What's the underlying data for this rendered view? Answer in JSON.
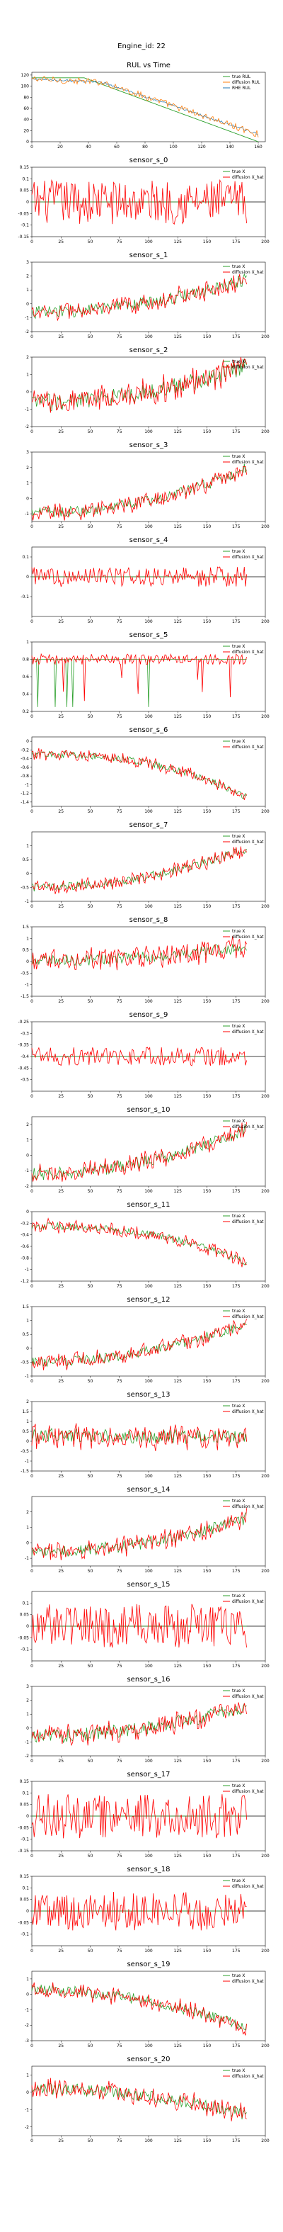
{
  "suptitle": "Engine_id: 22",
  "x_ticks_rul": [
    0,
    20,
    40,
    60,
    80,
    100,
    120,
    140,
    160
  ],
  "x_ticks_sensor": [
    0,
    25,
    50,
    75,
    100,
    125,
    150,
    175,
    200
  ],
  "colors": {
    "true": "#2ca02c",
    "pred": "#ff0000",
    "rul_true": "#2ca02c",
    "rul_pred": "#ff7f0e",
    "rul_rhat": "#1f77b4",
    "zero_line": "#000000"
  },
  "chart_data": [
    {
      "type": "line",
      "title": "RUL vs Time",
      "xlim": [
        0,
        165
      ],
      "ylim": [
        0,
        125
      ],
      "yticks": [
        0,
        20,
        40,
        60,
        80,
        100,
        120
      ],
      "legend": [
        "true RUL",
        "diffusion RUL",
        "RHE RUL"
      ],
      "legend_position": "top-right"
    },
    {
      "type": "line",
      "title": "sensor_s_0",
      "xlim": [
        0,
        200
      ],
      "ylim": [
        -0.15,
        0.15
      ],
      "yticks": [
        -0.15,
        -0.1,
        -0.05,
        0.0,
        0.05,
        0.1,
        0.15
      ],
      "legend": [
        "true X",
        "diffusion X_hat"
      ],
      "legend_position": "top-right"
    },
    {
      "type": "line",
      "title": "sensor_s_1",
      "xlim": [
        0,
        200
      ],
      "ylim": [
        -2,
        3
      ],
      "yticks": [
        -2,
        -1,
        0,
        1,
        2,
        3
      ],
      "legend": [
        "true X",
        "diffusion X_hat"
      ],
      "legend_position": "top-right"
    },
    {
      "type": "line",
      "title": "sensor_s_2",
      "xlim": [
        0,
        200
      ],
      "ylim": [
        -2,
        2
      ],
      "yticks": [
        -2,
        -1,
        0,
        1,
        2
      ],
      "legend": [
        "true X",
        "diffusion X_hat"
      ],
      "legend_position": "top-right"
    },
    {
      "type": "line",
      "title": "sensor_s_3",
      "xlim": [
        0,
        200
      ],
      "ylim": [
        -1.5,
        3
      ],
      "yticks": [
        -1,
        0,
        1,
        2,
        3
      ],
      "legend": [
        "true X",
        "diffusion X_hat"
      ],
      "legend_position": "top-right"
    },
    {
      "type": "line",
      "title": "sensor_s_4",
      "xlim": [
        0,
        200
      ],
      "ylim": [
        -0.2,
        0.15
      ],
      "yticks": [
        -0.1,
        0.0,
        0.1
      ],
      "legend": [
        "true X",
        "diffusion X_hat"
      ],
      "legend_position": "top-right"
    },
    {
      "type": "line",
      "title": "sensor_s_5",
      "xlim": [
        0,
        200
      ],
      "ylim": [
        0.2,
        1.0
      ],
      "yticks": [
        0.2,
        0.4,
        0.6,
        0.8,
        1.0
      ],
      "legend": [
        "true X",
        "diffusion X_hat"
      ],
      "legend_position": "top-right"
    },
    {
      "type": "line",
      "title": "sensor_s_6",
      "xlim": [
        0,
        200
      ],
      "ylim": [
        -1.5,
        0.1
      ],
      "yticks": [
        -1.4,
        -1.2,
        -1.0,
        -0.8,
        -0.6,
        -0.4,
        -0.2,
        0.0
      ],
      "legend": [
        "true X",
        "diffusion X_hat"
      ],
      "legend_position": "top-right"
    },
    {
      "type": "line",
      "title": "sensor_s_7",
      "xlim": [
        0,
        200
      ],
      "ylim": [
        -1.0,
        1.5
      ],
      "yticks": [
        -1.0,
        -0.5,
        0.0,
        0.5,
        1.0
      ],
      "legend": [
        "true X",
        "diffusion X_hat"
      ],
      "legend_position": "top-right"
    },
    {
      "type": "line",
      "title": "sensor_s_8",
      "xlim": [
        0,
        200
      ],
      "ylim": [
        -1.5,
        1.5
      ],
      "yticks": [
        -1.5,
        -1.0,
        -0.5,
        0.0,
        0.5,
        1.0,
        1.5
      ],
      "legend": [
        "true X",
        "diffusion X_hat"
      ],
      "legend_position": "top-right"
    },
    {
      "type": "line",
      "title": "sensor_s_9",
      "xlim": [
        0,
        200
      ],
      "ylim": [
        -0.55,
        -0.25
      ],
      "yticks": [
        -0.5,
        -0.45,
        -0.4,
        -0.35,
        -0.3,
        -0.25
      ],
      "legend": [
        "true X",
        "diffusion X_hat"
      ],
      "legend_position": "top-right"
    },
    {
      "type": "line",
      "title": "sensor_s_10",
      "xlim": [
        0,
        200
      ],
      "ylim": [
        -2,
        2.5
      ],
      "yticks": [
        -2,
        -1,
        0,
        1,
        2
      ],
      "legend": [
        "true X",
        "diffusion X_hat"
      ],
      "legend_position": "top-right"
    },
    {
      "type": "line",
      "title": "sensor_s_11",
      "xlim": [
        0,
        200
      ],
      "ylim": [
        -1.2,
        0.0
      ],
      "yticks": [
        -1.2,
        -1.0,
        -0.8,
        -0.6,
        -0.4,
        -0.2,
        0.0
      ],
      "legend": [
        "true X",
        "diffusion X_hat"
      ],
      "legend_position": "top-right"
    },
    {
      "type": "line",
      "title": "sensor_s_12",
      "xlim": [
        0,
        200
      ],
      "ylim": [
        -1.0,
        1.5
      ],
      "yticks": [
        -1.0,
        -0.5,
        0.0,
        0.5,
        1.0,
        1.5
      ],
      "legend": [
        "true X",
        "diffusion X_hat"
      ],
      "legend_position": "top-right"
    },
    {
      "type": "line",
      "title": "sensor_s_13",
      "xlim": [
        0,
        200
      ],
      "ylim": [
        -1.5,
        2.0
      ],
      "yticks": [
        -1.5,
        -1.0,
        -0.5,
        0.0,
        0.5,
        1.0,
        1.5,
        2.0
      ],
      "legend": [
        "true X",
        "diffusion X_hat"
      ],
      "legend_position": "top-right"
    },
    {
      "type": "line",
      "title": "sensor_s_14",
      "xlim": [
        0,
        200
      ],
      "ylim": [
        -1.5,
        3
      ],
      "yticks": [
        -1,
        0,
        1,
        2
      ],
      "legend": [
        "true X",
        "diffusion X_hat"
      ],
      "legend_position": "top-right"
    },
    {
      "type": "line",
      "title": "sensor_s_15",
      "xlim": [
        0,
        200
      ],
      "ylim": [
        -0.15,
        0.15
      ],
      "yticks": [
        -0.1,
        -0.05,
        0.0,
        0.05,
        0.1
      ],
      "legend": [
        "true X",
        "diffusion X_hat"
      ],
      "legend_position": "top-right"
    },
    {
      "type": "line",
      "title": "sensor_s_16",
      "xlim": [
        0,
        200
      ],
      "ylim": [
        -2,
        3
      ],
      "yticks": [
        -2,
        -1,
        0,
        1,
        2,
        3
      ],
      "legend": [
        "true X",
        "diffusion X_hat"
      ],
      "legend_position": "top-right"
    },
    {
      "type": "line",
      "title": "sensor_s_17",
      "xlim": [
        0,
        200
      ],
      "ylim": [
        -0.15,
        0.15
      ],
      "yticks": [
        -0.15,
        -0.1,
        -0.05,
        0.0,
        0.05,
        0.1,
        0.15
      ],
      "legend": [
        "true X",
        "diffusion X_hat"
      ],
      "legend_position": "top-right"
    },
    {
      "type": "line",
      "title": "sensor_s_18",
      "xlim": [
        0,
        200
      ],
      "ylim": [
        -0.15,
        0.15
      ],
      "yticks": [
        -0.1,
        -0.05,
        0.0,
        0.05,
        0.1,
        0.15
      ],
      "legend": [
        "true X",
        "diffusion X_hat"
      ],
      "legend_position": "top-right"
    },
    {
      "type": "line",
      "title": "sensor_s_19",
      "xlim": [
        0,
        200
      ],
      "ylim": [
        -3,
        1.5
      ],
      "yticks": [
        -3,
        -2,
        -1,
        0,
        1
      ],
      "legend": [
        "true X",
        "diffusion X_hat"
      ],
      "legend_position": "top-right"
    },
    {
      "type": "line",
      "title": "sensor_s_20",
      "xlim": [
        0,
        200
      ],
      "ylim": [
        -2.5,
        1.5
      ],
      "yticks": [
        -2,
        -1,
        0,
        1
      ],
      "legend": [
        "true X",
        "diffusion X_hat"
      ],
      "legend_position": "top-right"
    }
  ]
}
